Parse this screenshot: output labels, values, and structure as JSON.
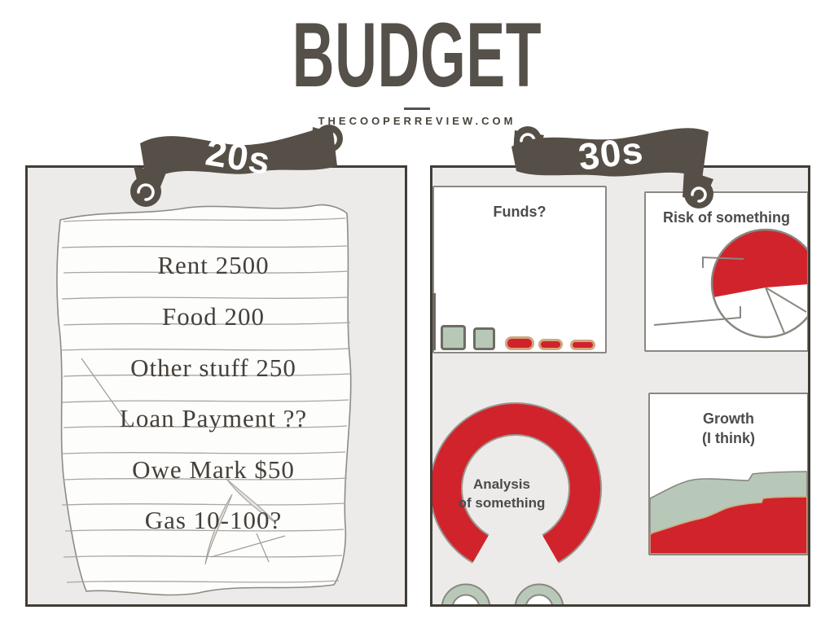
{
  "header": {
    "title": "BUDGET",
    "site": "THECOOPERREVIEW.COM"
  },
  "panels": {
    "twenties": {
      "ribbon": "20s",
      "note": {
        "items": [
          "Rent 2500",
          "Food 200",
          "Other stuff 250",
          "Loan Payment ??",
          "Owe Mark $50",
          "Gas 10-100?"
        ]
      }
    },
    "thirties": {
      "ribbon": "30s",
      "funds": {
        "title": "Funds?"
      },
      "risk": {
        "title": "Risk of something"
      },
      "analysis": {
        "line1": "Analysis",
        "line2": "of something"
      },
      "growth": {
        "line1": "Growth",
        "line2": "(I think)"
      }
    }
  },
  "chart_data": [
    {
      "type": "bar",
      "title": "Funds?",
      "values": [
        31,
        28,
        17,
        14,
        13
      ],
      "colors": [
        "sage",
        "sage",
        "red",
        "red",
        "red"
      ],
      "note": "unlabeled bars shrinking left to right"
    },
    {
      "type": "pie",
      "title": "Risk of something",
      "slices": [
        {
          "color": "red",
          "fraction": 0.55
        },
        {
          "color": "white",
          "fraction": 0.3
        },
        {
          "color": "white",
          "fraction": 0.15
        }
      ]
    },
    {
      "type": "donut",
      "title": "Analysis of something",
      "red_arc_fraction": 0.83
    },
    {
      "type": "area",
      "title": "Growth (I think)",
      "series": [
        {
          "name": "red",
          "trend": "rising"
        },
        {
          "name": "sage",
          "trend": "rising"
        }
      ]
    }
  ],
  "colors": {
    "red": "#d1232b",
    "sage": "#b8c9b8",
    "dark_brown": "#564f47",
    "panel_bg": "#ecebe9",
    "outline_gray": "#8b8781",
    "tan": "#cfa87f",
    "text_gray": "#4c4c4c",
    "ink": "#45413a"
  }
}
